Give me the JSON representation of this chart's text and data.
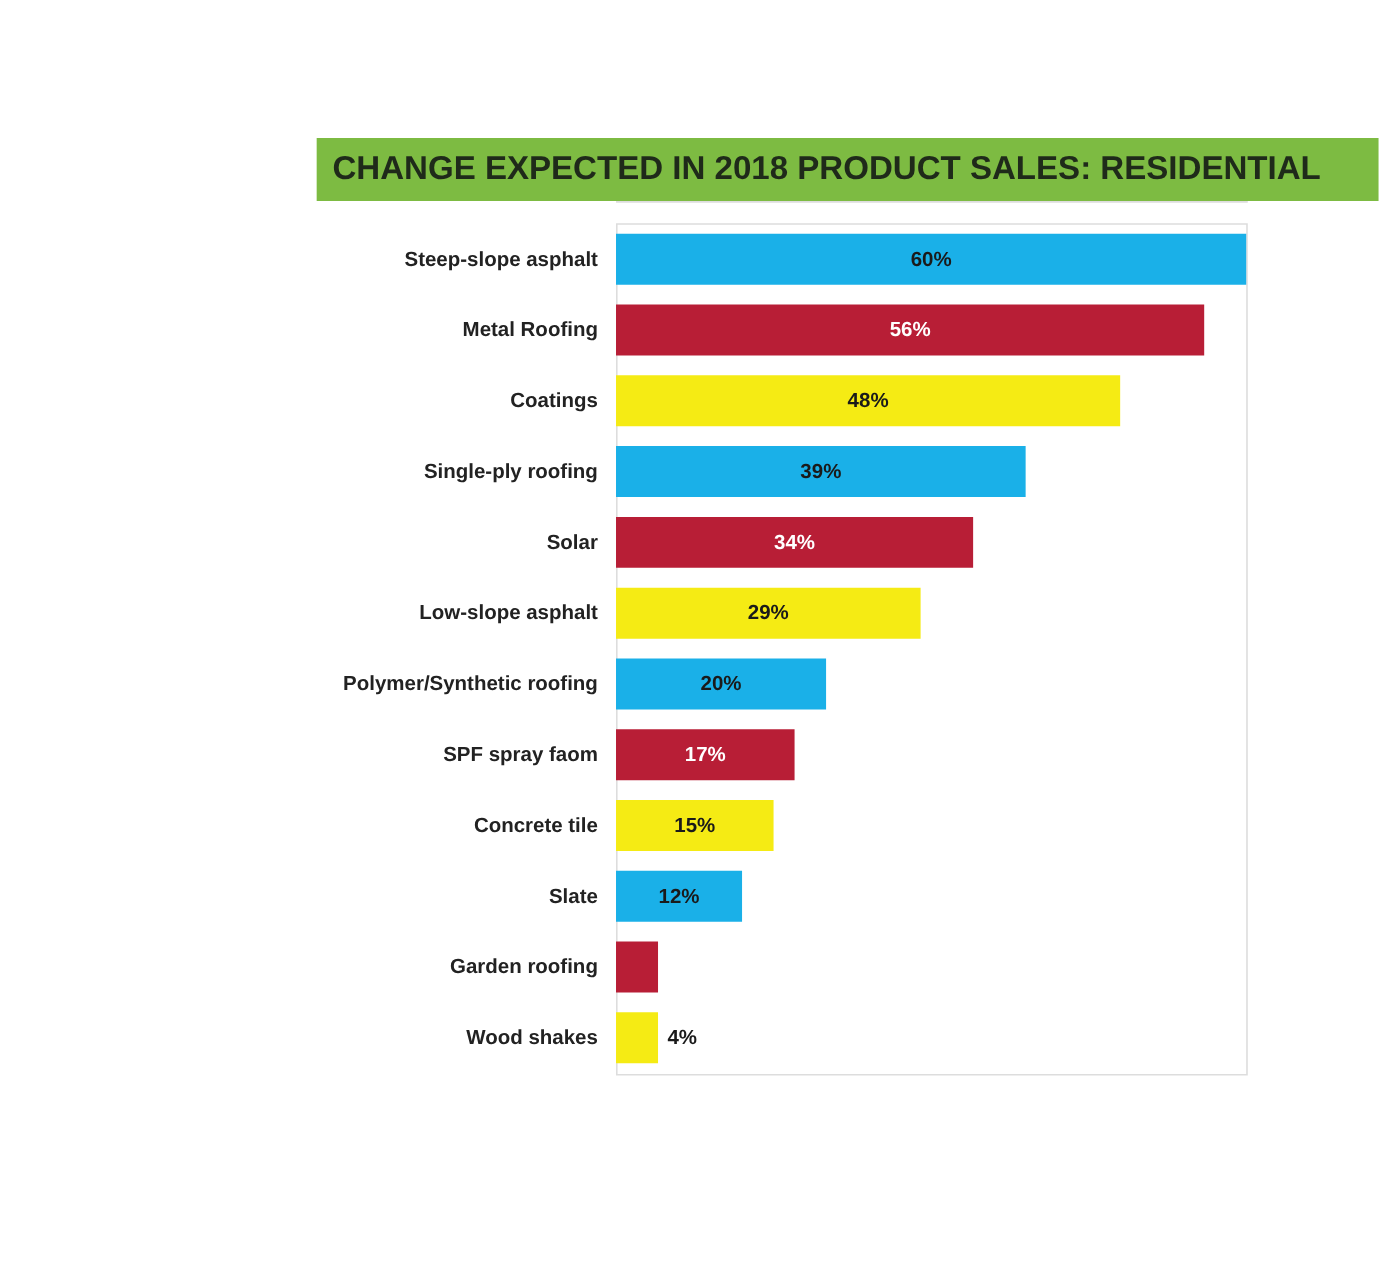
{
  "chart_data": {
    "type": "bar",
    "orientation": "horizontal",
    "title": "CHANGE EXPECTED IN 2018 PRODUCT SALES: RESIDENTIAL",
    "categories": [
      "Steep-slope asphalt",
      "Metal Roofing",
      "Coatings",
      "Single-ply roofing",
      "Solar",
      "Low-slope asphalt",
      "Polymer/Synthetic roofing",
      "SPF spray faom",
      "Concrete tile",
      "Slate",
      "Garden roofing",
      "Wood shakes"
    ],
    "values": [
      60,
      56,
      48,
      39,
      34,
      29,
      20,
      17,
      15,
      12,
      4,
      4
    ],
    "value_labels": [
      "60%",
      "56%",
      "48%",
      "39%",
      "34%",
      "29%",
      "20%",
      "17%",
      "15%",
      "12%",
      null,
      "4%"
    ],
    "colors": [
      "#1ab0e8",
      "#b81e36",
      "#f5eb14",
      "#1ab0e8",
      "#b81e36",
      "#f5eb14",
      "#1ab0e8",
      "#b81e36",
      "#f5eb14",
      "#1ab0e8",
      "#b81e36",
      "#f5eb14"
    ]
  }
}
